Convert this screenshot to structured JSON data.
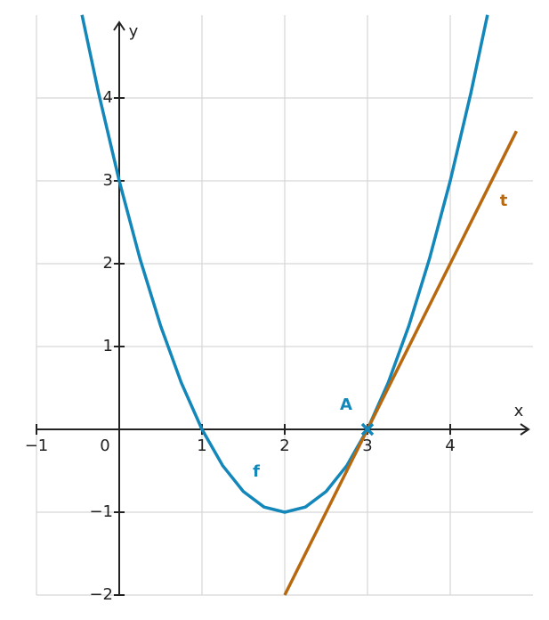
{
  "chart_data": {
    "type": "line",
    "x_label": "x",
    "y_label": "y",
    "xlim": [
      -1,
      5
    ],
    "ylim": [
      -2,
      5
    ],
    "grid": true,
    "xticks": [
      {
        "value": -1,
        "label": "−1"
      },
      0,
      1,
      2,
      3,
      4
    ],
    "yticks": [
      {
        "value": -2,
        "label": "−2"
      },
      {
        "value": -1,
        "label": "−1"
      },
      1,
      2,
      3,
      4
    ],
    "series": [
      {
        "name": "f",
        "color": "#1387b9",
        "x": [
          -0.45,
          -0.25,
          0,
          0.25,
          0.5,
          0.75,
          1,
          1.25,
          1.5,
          1.75,
          2,
          2.25,
          2.5,
          2.75,
          3,
          3.25,
          3.5,
          3.75,
          4,
          4.25,
          4.45
        ],
        "values": [
          5.0025,
          4.0625,
          3,
          2.0625,
          1.25,
          0.5625,
          0,
          -0.4375,
          -0.75,
          -0.9375,
          -1,
          -0.9375,
          -0.75,
          -0.4375,
          0,
          0.5625,
          1.25,
          2.0625,
          3,
          4.0625,
          5.0025
        ]
      },
      {
        "name": "t",
        "color": "#b8690f",
        "x": [
          2,
          4.8
        ],
        "values": [
          -2,
          3.6
        ]
      }
    ],
    "points": [
      {
        "label": "A",
        "x": 3,
        "y": 0,
        "color": "#1387b9"
      }
    ]
  }
}
